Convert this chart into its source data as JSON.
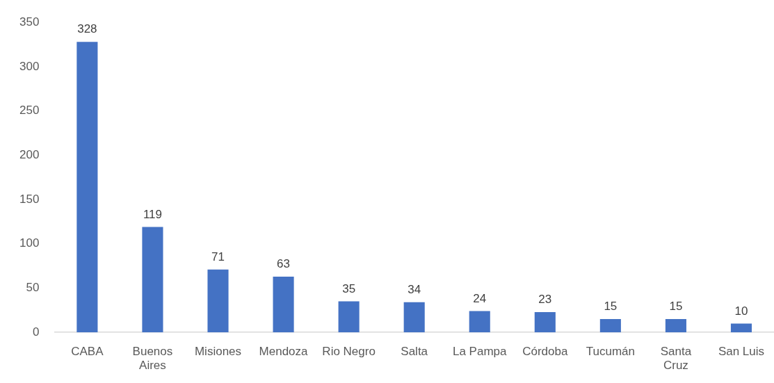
{
  "chart_data": {
    "type": "bar",
    "categories": [
      "CABA",
      "Buenos Aires",
      "Misiones",
      "Mendoza",
      "Rio Negro",
      "Salta",
      "La Pampa",
      "Córdoba",
      "Tucumán",
      "Santa Cruz",
      "San Luis"
    ],
    "values": [
      328,
      119,
      71,
      63,
      35,
      34,
      24,
      23,
      15,
      15,
      10
    ],
    "color": "#4472c4",
    "ylim": [
      0,
      350
    ],
    "yticks": [
      0,
      50,
      100,
      150,
      200,
      250,
      300,
      350
    ],
    "data_labels": true
  }
}
